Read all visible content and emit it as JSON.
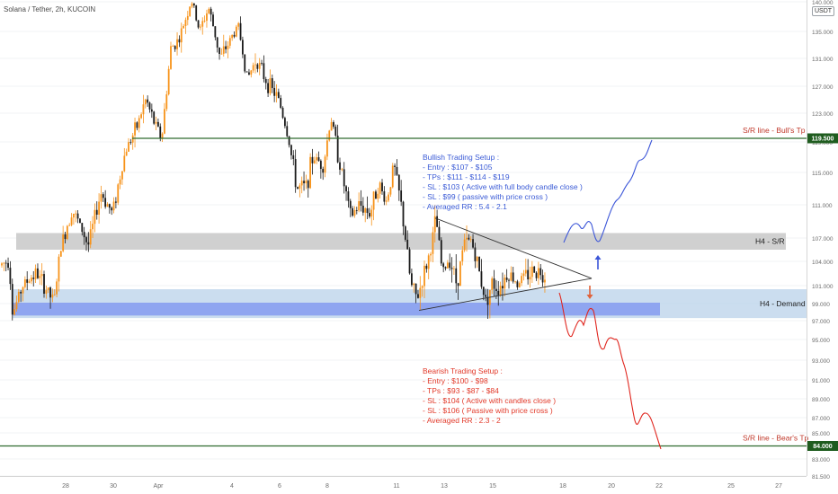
{
  "header": {
    "symbol": "Solana / Tether, 2h, KUCOIN",
    "currency": "USDT"
  },
  "colors": {
    "up": "#f7931a",
    "down": "#1a1a1a",
    "bull_line": "#2e6b2e",
    "bear_line": "#2e6b2e",
    "sr_zone": "#c8c8c8",
    "demand_zone": "#b9d1ea",
    "demand_inner": "#7b91f0",
    "bull_text": "#3b5bd6",
    "bear_text": "#e23a2a",
    "label_bg": "#1f5c1f"
  },
  "chart_data": {
    "type": "candlestick",
    "y_axis": {
      "ticks": [
        81.5,
        83,
        85,
        87,
        89,
        91,
        93,
        95,
        97,
        99,
        101,
        104,
        107,
        111,
        115,
        119,
        123,
        127,
        131,
        135,
        140
      ],
      "tick_labels": [
        "81.500",
        "83.000",
        "85.000",
        "87.000",
        "89.000",
        "91.000",
        "93.000",
        "95.000",
        "97.000",
        "99.000",
        "101.000",
        "104.000",
        "107.000",
        "111.000",
        "115.000",
        "119.000",
        "123.000",
        "127.000",
        "131.000",
        "135.000",
        "140.000"
      ],
      "range": [
        81.0,
        140.5
      ]
    },
    "x_axis": {
      "ticks": [
        "28",
        "30",
        "Apr",
        "4",
        "6",
        "8",
        "11",
        "13",
        "15",
        "18",
        "20",
        "22",
        "25",
        "27"
      ]
    },
    "levels": [
      {
        "label": "S/R line - Bull's Tp",
        "price": 119.5,
        "price_label": "119.500"
      },
      {
        "label": "S/R line - Bear's Tp",
        "price": 84.0,
        "price_label": "84.000"
      }
    ],
    "zones": [
      {
        "label": "H4 - S/R",
        "low": 105.5,
        "high": 107.6
      },
      {
        "label": "H4 - Demand",
        "low": 97.3,
        "high": 100.6
      }
    ],
    "triangle": {
      "apex": 101.9,
      "top_start": 109.4,
      "bottom_start": 98.2
    },
    "bullish_setup": {
      "title": "Bullish Trading Setup :",
      "lines": [
        "- Entry : $107 - $105",
        "- TPs : $111 - $114 - $119",
        "- SL : $103 ( Active with full body candle close )",
        "- SL : $99 ( passive with price cross )",
        "- Averaged RR : 5.4 - 2.1"
      ]
    },
    "bearish_setup": {
      "title": "Bearish Trading Setup :",
      "lines": [
        "- Entry : $100 - $98",
        "- TPs : $93 - $87 - $84",
        "- SL : $104 ( Active with candles close )",
        "- SL : $106 ( Passive with price cross )",
        "- Averaged RR : 2.3 - 2"
      ]
    },
    "path_anchors": [
      [
        0,
        103.5
      ],
      [
        10,
        104.2
      ],
      [
        14,
        97.8
      ],
      [
        25,
        101
      ],
      [
        40,
        102.6
      ],
      [
        60,
        99.1
      ],
      [
        68,
        106
      ],
      [
        80,
        110.5
      ],
      [
        92,
        107.8
      ],
      [
        98,
        106
      ],
      [
        112,
        112.5
      ],
      [
        125,
        110
      ],
      [
        140,
        118
      ],
      [
        152,
        121
      ],
      [
        162,
        125
      ],
      [
        172,
        121.5
      ],
      [
        180,
        119.5
      ],
      [
        190,
        132.5
      ],
      [
        200,
        134
      ],
      [
        207,
        137.5
      ],
      [
        213,
        140.2
      ],
      [
        222,
        135
      ],
      [
        232,
        139
      ],
      [
        245,
        131
      ],
      [
        255,
        133.5
      ],
      [
        265,
        136
      ],
      [
        275,
        128
      ],
      [
        285,
        131
      ],
      [
        295,
        128
      ],
      [
        310,
        125
      ],
      [
        320,
        120
      ],
      [
        330,
        113
      ],
      [
        340,
        113.2
      ],
      [
        348,
        117
      ],
      [
        360,
        116
      ],
      [
        368,
        122.5
      ],
      [
        378,
        116
      ],
      [
        390,
        109.5
      ],
      [
        400,
        111
      ],
      [
        412,
        110
      ],
      [
        420,
        113.6
      ],
      [
        430,
        111.4
      ],
      [
        438,
        116
      ],
      [
        446,
        111
      ],
      [
        452,
        106
      ],
      [
        457,
        101
      ],
      [
        464,
        99.5
      ],
      [
        470,
        101.8
      ],
      [
        478,
        105
      ],
      [
        485,
        109.4
      ],
      [
        492,
        102.5
      ],
      [
        500,
        104.5
      ],
      [
        508,
        101.2
      ],
      [
        516,
        106.2
      ],
      [
        524,
        106.8
      ],
      [
        532,
        103.2
      ],
      [
        540,
        99.3
      ],
      [
        547,
        101.2
      ],
      [
        555,
        100.8
      ],
      [
        565,
        102.6
      ],
      [
        575,
        101.4
      ],
      [
        585,
        102.2
      ],
      [
        595,
        103.0
      ],
      [
        610,
        102.1
      ]
    ]
  }
}
